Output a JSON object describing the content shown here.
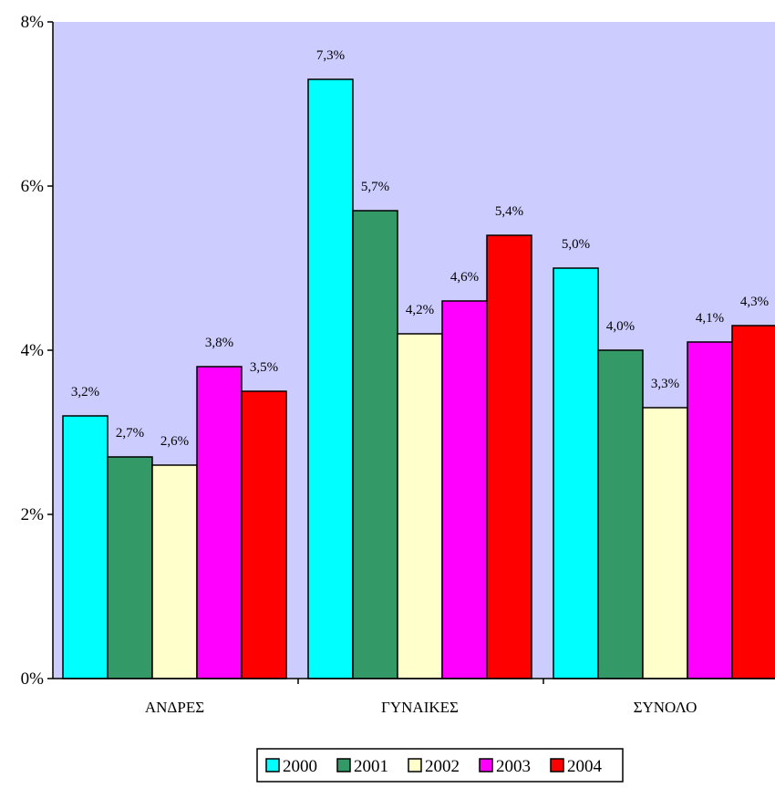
{
  "chart_data": {
    "type": "bar",
    "title": "",
    "xlabel": "",
    "ylabel": "",
    "ylim": [
      0,
      8
    ],
    "yticks": [
      {
        "value": 0,
        "label": "0%"
      },
      {
        "value": 2,
        "label": "2%"
      },
      {
        "value": 4,
        "label": "4%"
      },
      {
        "value": 6,
        "label": "6%"
      },
      {
        "value": 8,
        "label": "8%"
      }
    ],
    "categories": [
      "ΑΝΔΡΕΣ",
      "ΓΥΝΑΙΚΕΣ",
      "ΣΥΝΟΛΟ"
    ],
    "series": [
      {
        "name": "2000",
        "color": "#00ffff",
        "values": [
          3.2,
          7.3,
          5.0
        ],
        "labels": [
          "3,2%",
          "7,3%",
          "5,0%"
        ]
      },
      {
        "name": "2001",
        "color": "#339966",
        "values": [
          2.7,
          5.7,
          4.0
        ],
        "labels": [
          "2,7%",
          "5,7%",
          "4,0%"
        ]
      },
      {
        "name": "2002",
        "color": "#ffffcc",
        "values": [
          2.6,
          4.2,
          3.3
        ],
        "labels": [
          "2,6%",
          "4,2%",
          "3,3%"
        ]
      },
      {
        "name": "2003",
        "color": "#ff00ff",
        "values": [
          3.8,
          4.6,
          4.1
        ],
        "labels": [
          "3,8%",
          "4,6%",
          "4,1%"
        ]
      },
      {
        "name": "2004",
        "color": "#ff0000",
        "values": [
          3.5,
          5.4,
          4.3
        ],
        "labels": [
          "3,5%",
          "5,4%",
          "4,3%"
        ]
      }
    ],
    "plot_background": "#ccccff",
    "grid": false,
    "legend_position": "bottom"
  }
}
